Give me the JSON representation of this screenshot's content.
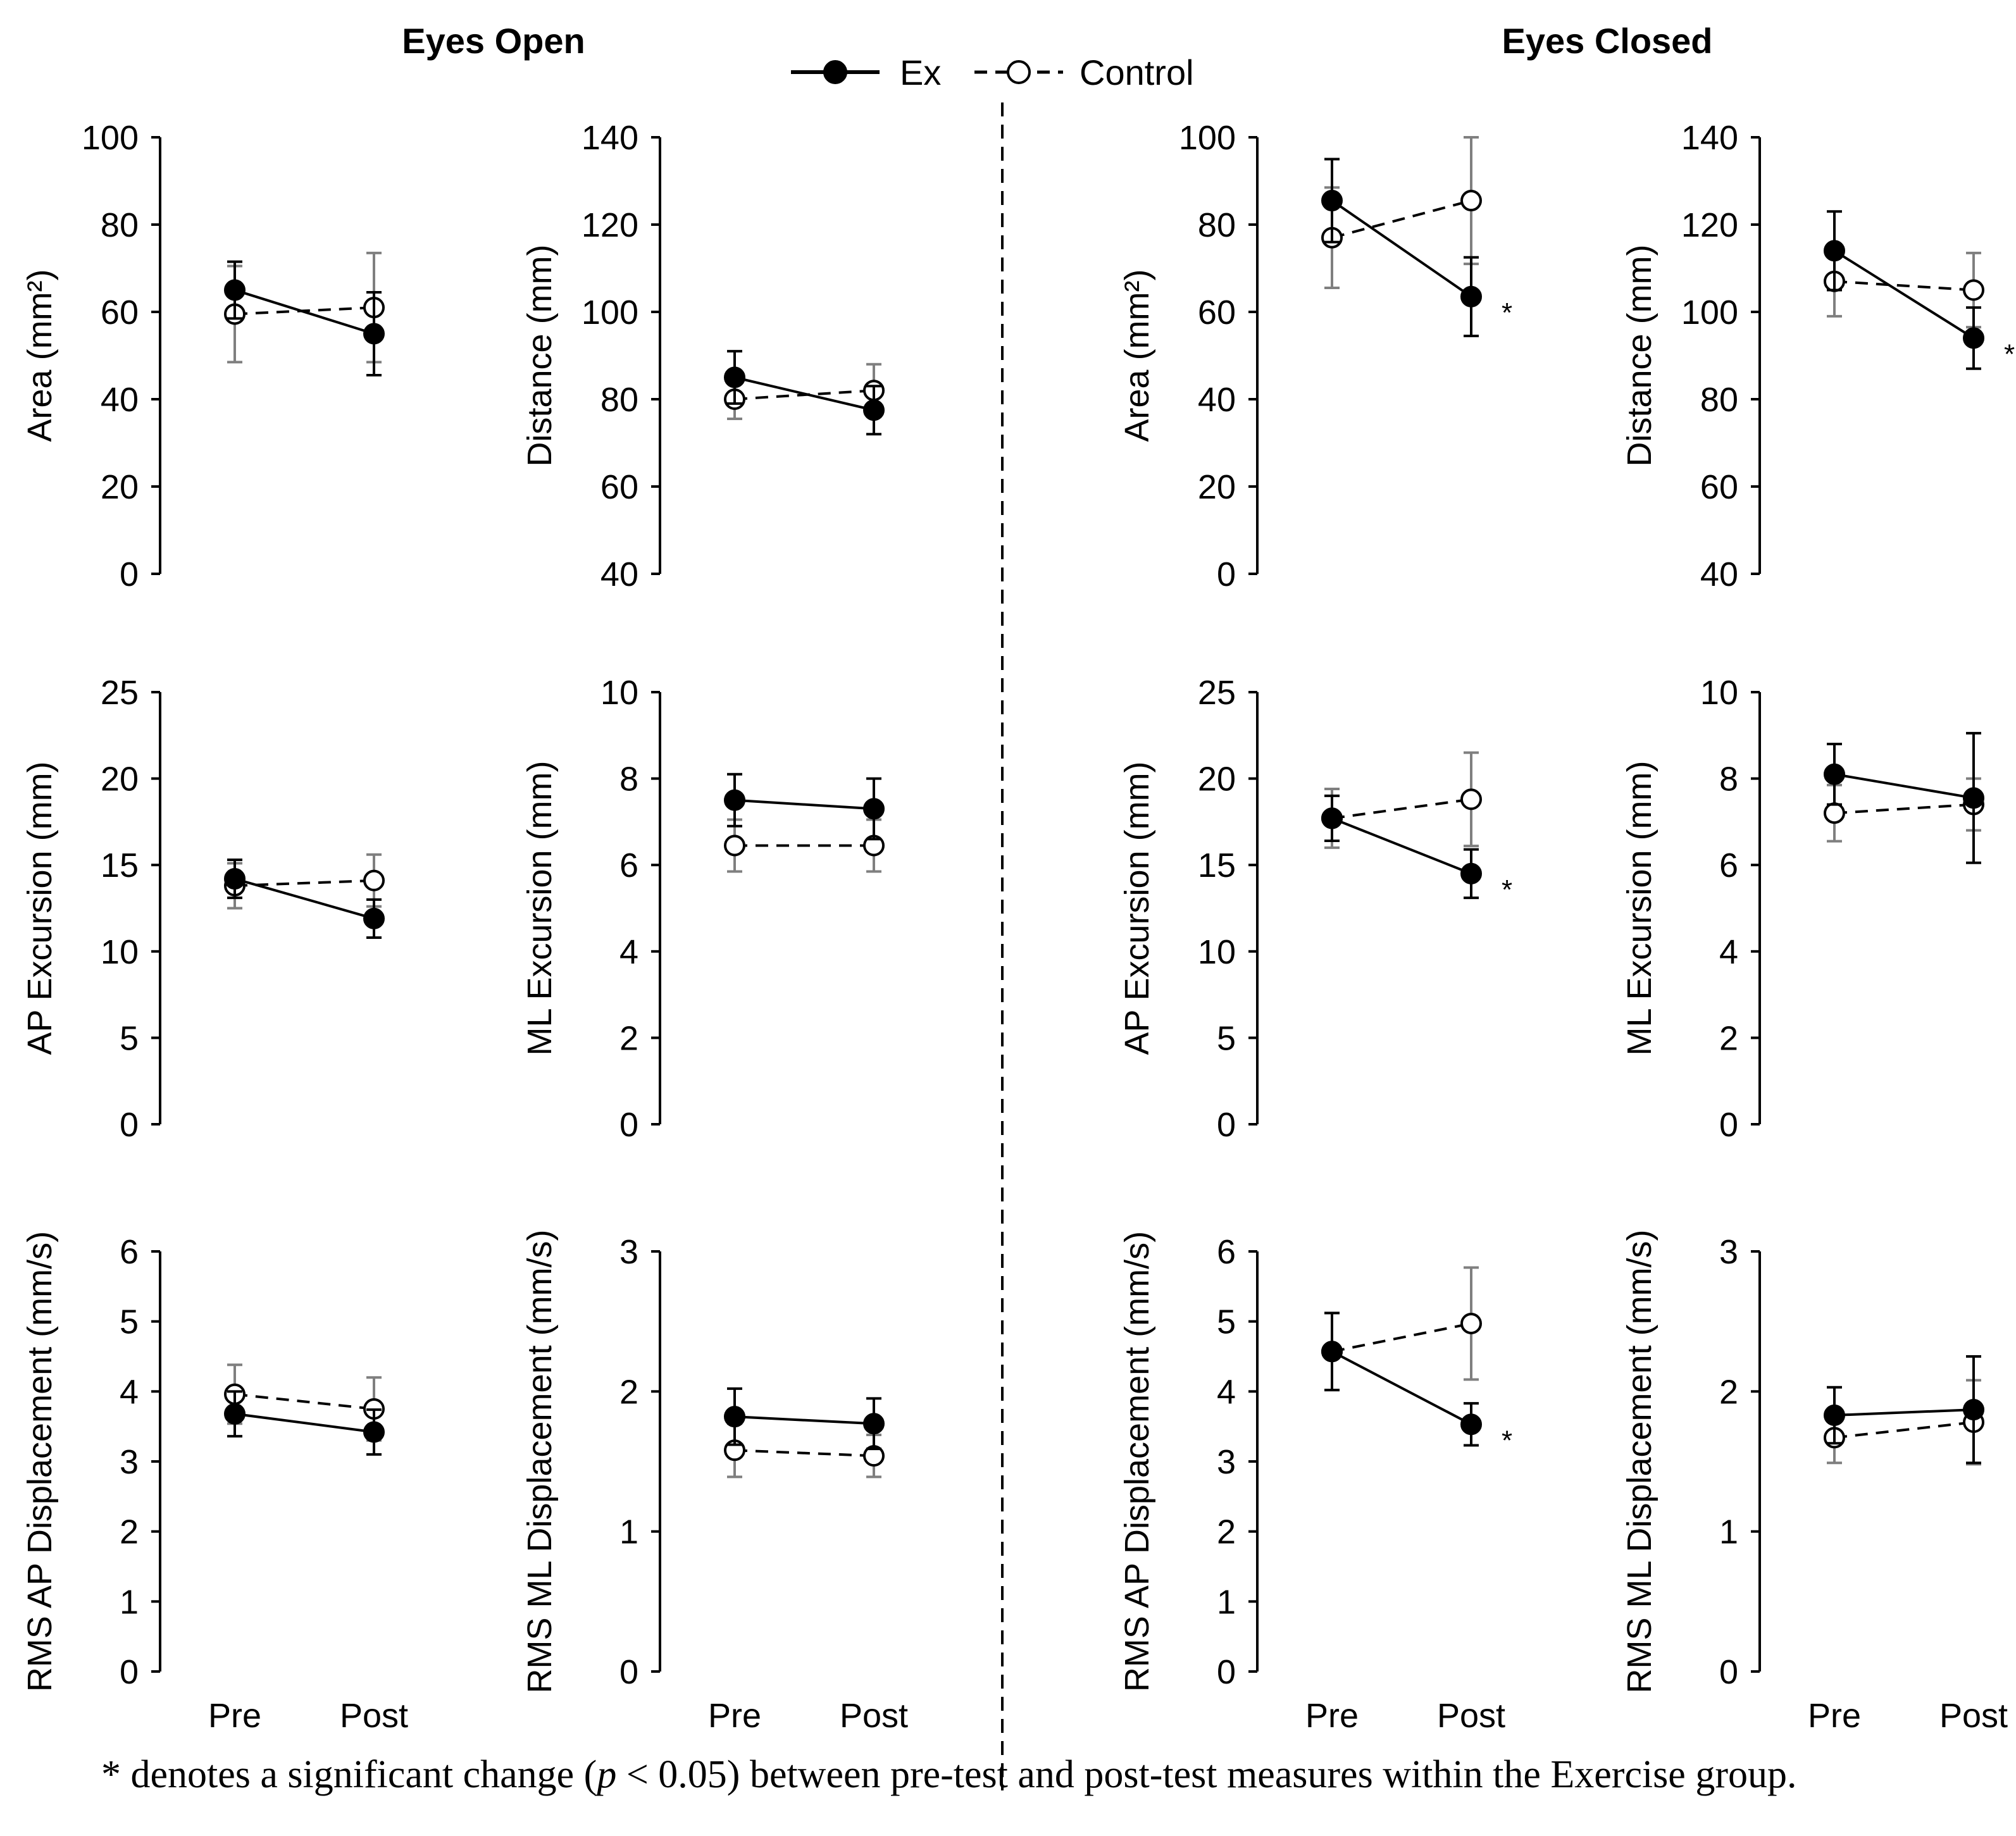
{
  "header": {
    "eyes_open": "Eyes Open",
    "eyes_closed": "Eyes Closed"
  },
  "legend": {
    "ex_label": "Ex",
    "control_label": "Control"
  },
  "footnote": {
    "star": "*",
    "before": " denotes a significant change (",
    "p": "p",
    "after": " < 0.05) between pre-test and post-test measures within the Exercise group."
  },
  "colors": {
    "ex_line": "#000000",
    "control_line": "#000000",
    "control_errorbar": "#7f7f7f",
    "ex_errorbar": "#000000"
  },
  "chart_data": [
    {
      "type": "line",
      "condition": "Eyes Open",
      "ylabel": "Area (mm²)",
      "ylim": [
        0,
        100
      ],
      "yticks": [
        0,
        20,
        40,
        60,
        80,
        100
      ],
      "categories": [
        "Pre",
        "Post"
      ],
      "series": [
        {
          "name": "Ex",
          "values": [
            65,
            55
          ],
          "err": [
            6.5,
            9.5
          ]
        },
        {
          "name": "Control",
          "values": [
            59.5,
            61
          ],
          "err": [
            11,
            12.5
          ]
        }
      ],
      "significant": false,
      "show_x_labels": false
    },
    {
      "type": "line",
      "condition": "Eyes Open",
      "ylabel": "Distance (mm)",
      "ylim": [
        40,
        140
      ],
      "yticks": [
        40,
        60,
        80,
        100,
        120,
        140
      ],
      "categories": [
        "Pre",
        "Post"
      ],
      "series": [
        {
          "name": "Ex",
          "values": [
            85,
            77.5
          ],
          "err": [
            6,
            5.5
          ]
        },
        {
          "name": "Control",
          "values": [
            80,
            82
          ],
          "err": [
            4.5,
            6
          ]
        }
      ],
      "significant": false,
      "show_x_labels": false
    },
    {
      "type": "line",
      "condition": "Eyes Closed",
      "ylabel": "Area (mm²)",
      "ylim": [
        0,
        100
      ],
      "yticks": [
        0,
        20,
        40,
        60,
        80,
        100
      ],
      "categories": [
        "Pre",
        "Post"
      ],
      "series": [
        {
          "name": "Ex",
          "values": [
            85.5,
            63.5
          ],
          "err": [
            9.5,
            9
          ]
        },
        {
          "name": "Control",
          "values": [
            77,
            85.5
          ],
          "err": [
            11.5,
            14.5
          ]
        }
      ],
      "significant": true,
      "show_x_labels": false
    },
    {
      "type": "line",
      "condition": "Eyes Closed",
      "ylabel": "Distance (mm)",
      "ylim": [
        40,
        140
      ],
      "yticks": [
        40,
        60,
        80,
        100,
        120,
        140
      ],
      "categories": [
        "Pre",
        "Post"
      ],
      "series": [
        {
          "name": "Ex",
          "values": [
            114,
            94
          ],
          "err": [
            9,
            7
          ]
        },
        {
          "name": "Control",
          "values": [
            107,
            105
          ],
          "err": [
            8,
            8.5
          ]
        }
      ],
      "significant": true,
      "show_x_labels": false
    },
    {
      "type": "line",
      "condition": "Eyes Open",
      "ylabel": "AP Excursion (mm)",
      "ylim": [
        0,
        25
      ],
      "yticks": [
        0,
        5,
        10,
        15,
        20,
        25
      ],
      "categories": [
        "Pre",
        "Post"
      ],
      "series": [
        {
          "name": "Ex",
          "values": [
            14.2,
            11.9
          ],
          "err": [
            1.1,
            1.1
          ]
        },
        {
          "name": "Control",
          "values": [
            13.8,
            14.1
          ],
          "err": [
            1.3,
            1.5
          ]
        }
      ],
      "significant": false,
      "show_x_labels": false
    },
    {
      "type": "line",
      "condition": "Eyes Open",
      "ylabel": "ML Excursion (mm)",
      "ylim": [
        0,
        10
      ],
      "yticks": [
        0,
        2,
        4,
        6,
        8,
        10
      ],
      "categories": [
        "Pre",
        "Post"
      ],
      "series": [
        {
          "name": "Ex",
          "values": [
            7.5,
            7.3
          ],
          "err": [
            0.6,
            0.7
          ]
        },
        {
          "name": "Control",
          "values": [
            6.45,
            6.45
          ],
          "err": [
            0.6,
            0.6
          ]
        }
      ],
      "significant": false,
      "show_x_labels": false
    },
    {
      "type": "line",
      "condition": "Eyes Closed",
      "ylabel": "AP Excursion (mm)",
      "ylim": [
        0,
        25
      ],
      "yticks": [
        0,
        5,
        10,
        15,
        20,
        25
      ],
      "categories": [
        "Pre",
        "Post"
      ],
      "series": [
        {
          "name": "Ex",
          "values": [
            17.7,
            14.5
          ],
          "err": [
            1.3,
            1.4
          ]
        },
        {
          "name": "Control",
          "values": [
            17.7,
            18.8
          ],
          "err": [
            1.7,
            2.7
          ]
        }
      ],
      "significant": true,
      "show_x_labels": false
    },
    {
      "type": "line",
      "condition": "Eyes Closed",
      "ylabel": "ML Excursion (mm)",
      "ylim": [
        0,
        10
      ],
      "yticks": [
        0,
        2,
        4,
        6,
        8,
        10
      ],
      "categories": [
        "Pre",
        "Post"
      ],
      "series": [
        {
          "name": "Ex",
          "values": [
            8.1,
            7.55
          ],
          "err": [
            0.7,
            1.5
          ]
        },
        {
          "name": "Control",
          "values": [
            7.2,
            7.4
          ],
          "err": [
            0.65,
            0.6
          ]
        }
      ],
      "significant": false,
      "show_x_labels": false
    },
    {
      "type": "line",
      "condition": "Eyes Open",
      "ylabel": "RMS AP Displacement (mm/s)",
      "ylim": [
        0,
        6
      ],
      "yticks": [
        0,
        1,
        2,
        3,
        4,
        5,
        6
      ],
      "categories": [
        "Pre",
        "Post"
      ],
      "series": [
        {
          "name": "Ex",
          "values": [
            3.68,
            3.42
          ],
          "err": [
            0.32,
            0.32
          ]
        },
        {
          "name": "Control",
          "values": [
            3.96,
            3.75
          ],
          "err": [
            0.42,
            0.45
          ]
        }
      ],
      "significant": false,
      "show_x_labels": true
    },
    {
      "type": "line",
      "condition": "Eyes Open",
      "ylabel": "RMS ML Displacement (mm/s)",
      "ylim": [
        0,
        3
      ],
      "yticks": [
        0,
        1,
        2,
        3
      ],
      "categories": [
        "Pre",
        "Post"
      ],
      "series": [
        {
          "name": "Ex",
          "values": [
            1.82,
            1.77
          ],
          "err": [
            0.2,
            0.18
          ]
        },
        {
          "name": "Control",
          "values": [
            1.58,
            1.54
          ],
          "err": [
            0.19,
            0.15
          ]
        }
      ],
      "significant": false,
      "show_x_labels": true
    },
    {
      "type": "line",
      "condition": "Eyes Closed",
      "ylabel": "RMS AP Displacement (mm/s)",
      "ylim": [
        0,
        6
      ],
      "yticks": [
        0,
        1,
        2,
        3,
        4,
        5,
        6
      ],
      "categories": [
        "Pre",
        "Post"
      ],
      "series": [
        {
          "name": "Ex",
          "values": [
            4.57,
            3.53
          ],
          "err": [
            0.55,
            0.3
          ]
        },
        {
          "name": "Control",
          "values": [
            4.57,
            4.97
          ],
          "err": [
            0.55,
            0.8
          ]
        }
      ],
      "significant": true,
      "show_x_labels": true
    },
    {
      "type": "line",
      "condition": "Eyes Closed",
      "ylabel": "RMS ML Displacement (mm/s)",
      "ylim": [
        0,
        3
      ],
      "yticks": [
        0,
        1,
        2,
        3
      ],
      "categories": [
        "Pre",
        "Post"
      ],
      "series": [
        {
          "name": "Ex",
          "values": [
            1.83,
            1.87
          ],
          "err": [
            0.2,
            0.38
          ]
        },
        {
          "name": "Control",
          "values": [
            1.67,
            1.78
          ],
          "err": [
            0.18,
            0.3
          ]
        }
      ],
      "significant": false,
      "show_x_labels": true
    }
  ]
}
